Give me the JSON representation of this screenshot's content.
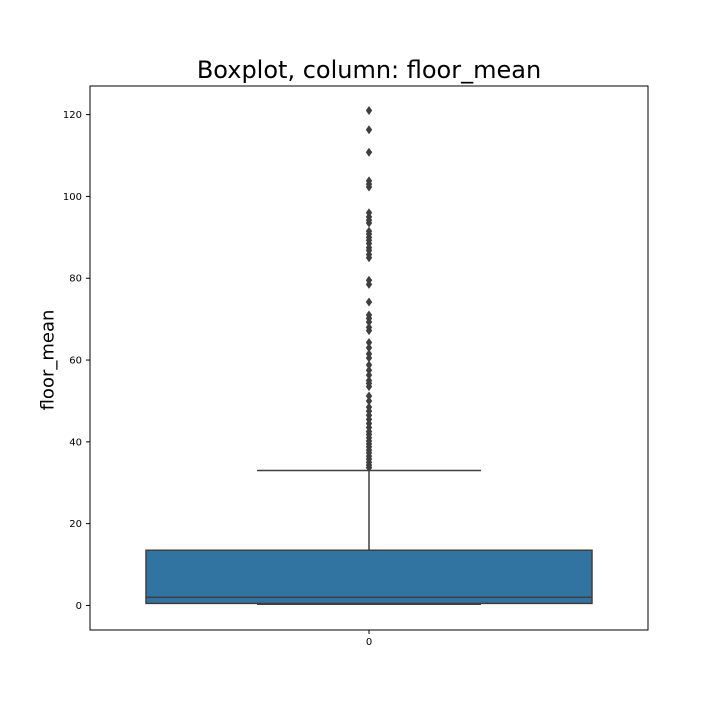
{
  "chart_data": {
    "type": "boxplot",
    "title": "Boxplot, column: floor_mean",
    "xlabel": "",
    "ylabel": "floor_mean",
    "categories": [
      "0"
    ],
    "ylim": [
      -6,
      127
    ],
    "yticks": [
      0,
      20,
      40,
      60,
      80,
      100,
      120
    ],
    "box": {
      "whisker_low": 0.3,
      "q1": 0.5,
      "median": 2.0,
      "q3": 13.5,
      "whisker_high": 33.0
    },
    "outliers": [
      121.0,
      116.3,
      110.8,
      103.8,
      103.0,
      102.3,
      96.0,
      95.0,
      94.2,
      93.5,
      91.5,
      90.8,
      90.0,
      89.3,
      88.5,
      87.5,
      86.8,
      85.8,
      85.0,
      79.5,
      78.5,
      74.2,
      71.0,
      70.2,
      69.3,
      68.0,
      67.2,
      64.3,
      63.0,
      61.5,
      60.5,
      58.8,
      57.5,
      56.3,
      55.0,
      54.3,
      53.5,
      51.2,
      50.0,
      48.5,
      47.5,
      46.5,
      45.5,
      44.5,
      43.5,
      42.5,
      41.8,
      41.0,
      40.2,
      39.5,
      38.8,
      38.0,
      37.3,
      36.5,
      35.8,
      35.0,
      34.3,
      33.7
    ],
    "colors": {
      "box_fill": "#3274a1",
      "line": "#3f3f3f",
      "outlier": "#3f3f3f"
    },
    "grid": false
  }
}
